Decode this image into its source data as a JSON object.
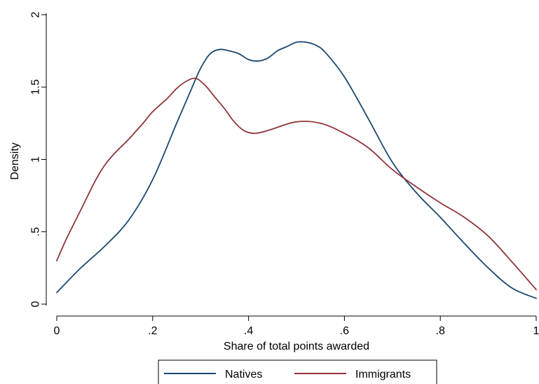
{
  "chart_data": {
    "type": "line",
    "title": "",
    "xlabel": "Share of total points awarded",
    "ylabel": "Density",
    "xlim": [
      0,
      1
    ],
    "ylim": [
      0,
      2
    ],
    "x_ticks": [
      {
        "value": 0,
        "label": "0"
      },
      {
        "value": 0.2,
        "label": ".2"
      },
      {
        "value": 0.4,
        "label": ".4"
      },
      {
        "value": 0.6,
        "label": ".6"
      },
      {
        "value": 0.8,
        "label": ".8"
      },
      {
        "value": 1,
        "label": "1"
      }
    ],
    "y_ticks": [
      {
        "value": 0,
        "label": "0"
      },
      {
        "value": 0.5,
        "label": ".5"
      },
      {
        "value": 1,
        "label": "1"
      },
      {
        "value": 1.5,
        "label": "1.5"
      },
      {
        "value": 2,
        "label": "2"
      }
    ],
    "grid": false,
    "legend_position": "bottom",
    "series": [
      {
        "name": "Natives",
        "color": "#1a476f",
        "x": [
          0,
          0.05,
          0.1,
          0.15,
          0.2,
          0.25,
          0.28,
          0.3,
          0.32,
          0.34,
          0.36,
          0.38,
          0.4,
          0.42,
          0.44,
          0.46,
          0.48,
          0.5,
          0.52,
          0.54,
          0.56,
          0.6,
          0.65,
          0.7,
          0.75,
          0.8,
          0.85,
          0.9,
          0.95,
          1.0
        ],
        "y": [
          0.08,
          0.25,
          0.4,
          0.58,
          0.86,
          1.25,
          1.48,
          1.63,
          1.73,
          1.76,
          1.75,
          1.73,
          1.69,
          1.68,
          1.7,
          1.75,
          1.78,
          1.81,
          1.81,
          1.79,
          1.74,
          1.57,
          1.28,
          0.98,
          0.77,
          0.6,
          0.42,
          0.25,
          0.11,
          0.04
        ]
      },
      {
        "name": "Immigrants",
        "color": "#90353b",
        "x": [
          0,
          0.02,
          0.05,
          0.08,
          0.1,
          0.12,
          0.15,
          0.18,
          0.2,
          0.23,
          0.25,
          0.27,
          0.29,
          0.31,
          0.33,
          0.35,
          0.37,
          0.39,
          0.41,
          0.43,
          0.45,
          0.5,
          0.55,
          0.6,
          0.65,
          0.7,
          0.75,
          0.8,
          0.85,
          0.9,
          0.95,
          1.0
        ],
        "y": [
          0.3,
          0.45,
          0.65,
          0.85,
          0.96,
          1.04,
          1.14,
          1.25,
          1.33,
          1.42,
          1.49,
          1.54,
          1.56,
          1.51,
          1.43,
          1.35,
          1.26,
          1.2,
          1.18,
          1.19,
          1.21,
          1.26,
          1.25,
          1.18,
          1.08,
          0.93,
          0.81,
          0.7,
          0.6,
          0.47,
          0.29,
          0.1
        ]
      }
    ]
  }
}
